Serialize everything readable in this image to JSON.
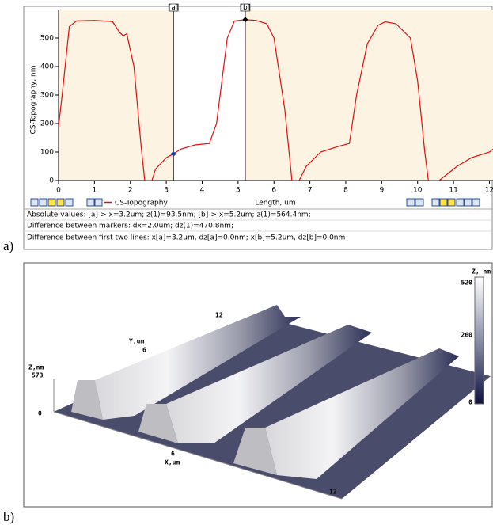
{
  "chart_data": {
    "type": "line",
    "panel_label": "a)",
    "x_label": "Length, um",
    "y_label": "CS-Topography, nm",
    "x": [
      0,
      0.1,
      0.3,
      0.5,
      1.0,
      1.5,
      1.7,
      1.8,
      1.9,
      2.1,
      2.3,
      2.4,
      2.6,
      2.7,
      3.0,
      3.2,
      3.4,
      3.8,
      4.2,
      4.4,
      4.7,
      4.9,
      5.2,
      5.5,
      5.8,
      6.0,
      6.3,
      6.5,
      6.7,
      6.9,
      7.3,
      7.8,
      8.1,
      8.3,
      8.6,
      8.9,
      9.1,
      9.4,
      9.8,
      10.0,
      10.2,
      10.3,
      10.6,
      11.1,
      11.5,
      12.0,
      12.1
    ],
    "series": [
      {
        "name": "CS-Topography",
        "color": "#e01010",
        "values": [
          190,
          300,
          540,
          560,
          562,
          558,
          520,
          508,
          515,
          400,
          120,
          0,
          0,
          40,
          80,
          93.5,
          110,
          125,
          130,
          200,
          500,
          560,
          564.4,
          562,
          550,
          500,
          250,
          0,
          0,
          50,
          100,
          120,
          130,
          300,
          480,
          545,
          557,
          550,
          500,
          350,
          100,
          0,
          0,
          50,
          80,
          100,
          110
        ]
      }
    ],
    "xlim": [
      0,
      12.1
    ],
    "xticks": [
      0,
      1,
      2,
      3,
      4,
      5,
      6,
      7,
      8,
      9,
      10,
      11,
      12
    ],
    "ylim": [
      0,
      600
    ],
    "yticks": [
      0,
      100,
      200,
      300,
      400,
      500
    ],
    "markers": [
      {
        "label": "[a]",
        "x": 3.2,
        "y": 93.5
      },
      {
        "label": "[b]",
        "x": 5.2,
        "y": 564.4
      }
    ],
    "status_lines": [
      "Absolute values: [a]-> x=3.2um;  z(1)=93.5nm;    [b]-> x=5.2um;  z(1)=564.4nm;",
      "Difference between markers: dx=2.0um; dz(1)=470.8nm;",
      "Difference between first two lines: x[a]=3.2um, dz[a]=0.0nm;   x[b]=5.2um, dz[b]=0.0nm"
    ]
  },
  "surface_view": {
    "panel_label": "b)",
    "z_label": "Z,nm",
    "z_ticks": [
      "573",
      "0"
    ],
    "y_label": "Y,um",
    "y_ticks": [
      "6",
      "12"
    ],
    "x_label": "X,um",
    "x_ticks": [
      "6",
      "12"
    ],
    "colorbar_label": "Z, nm",
    "colorbar_ticks": [
      "520",
      "260",
      "0"
    ]
  }
}
